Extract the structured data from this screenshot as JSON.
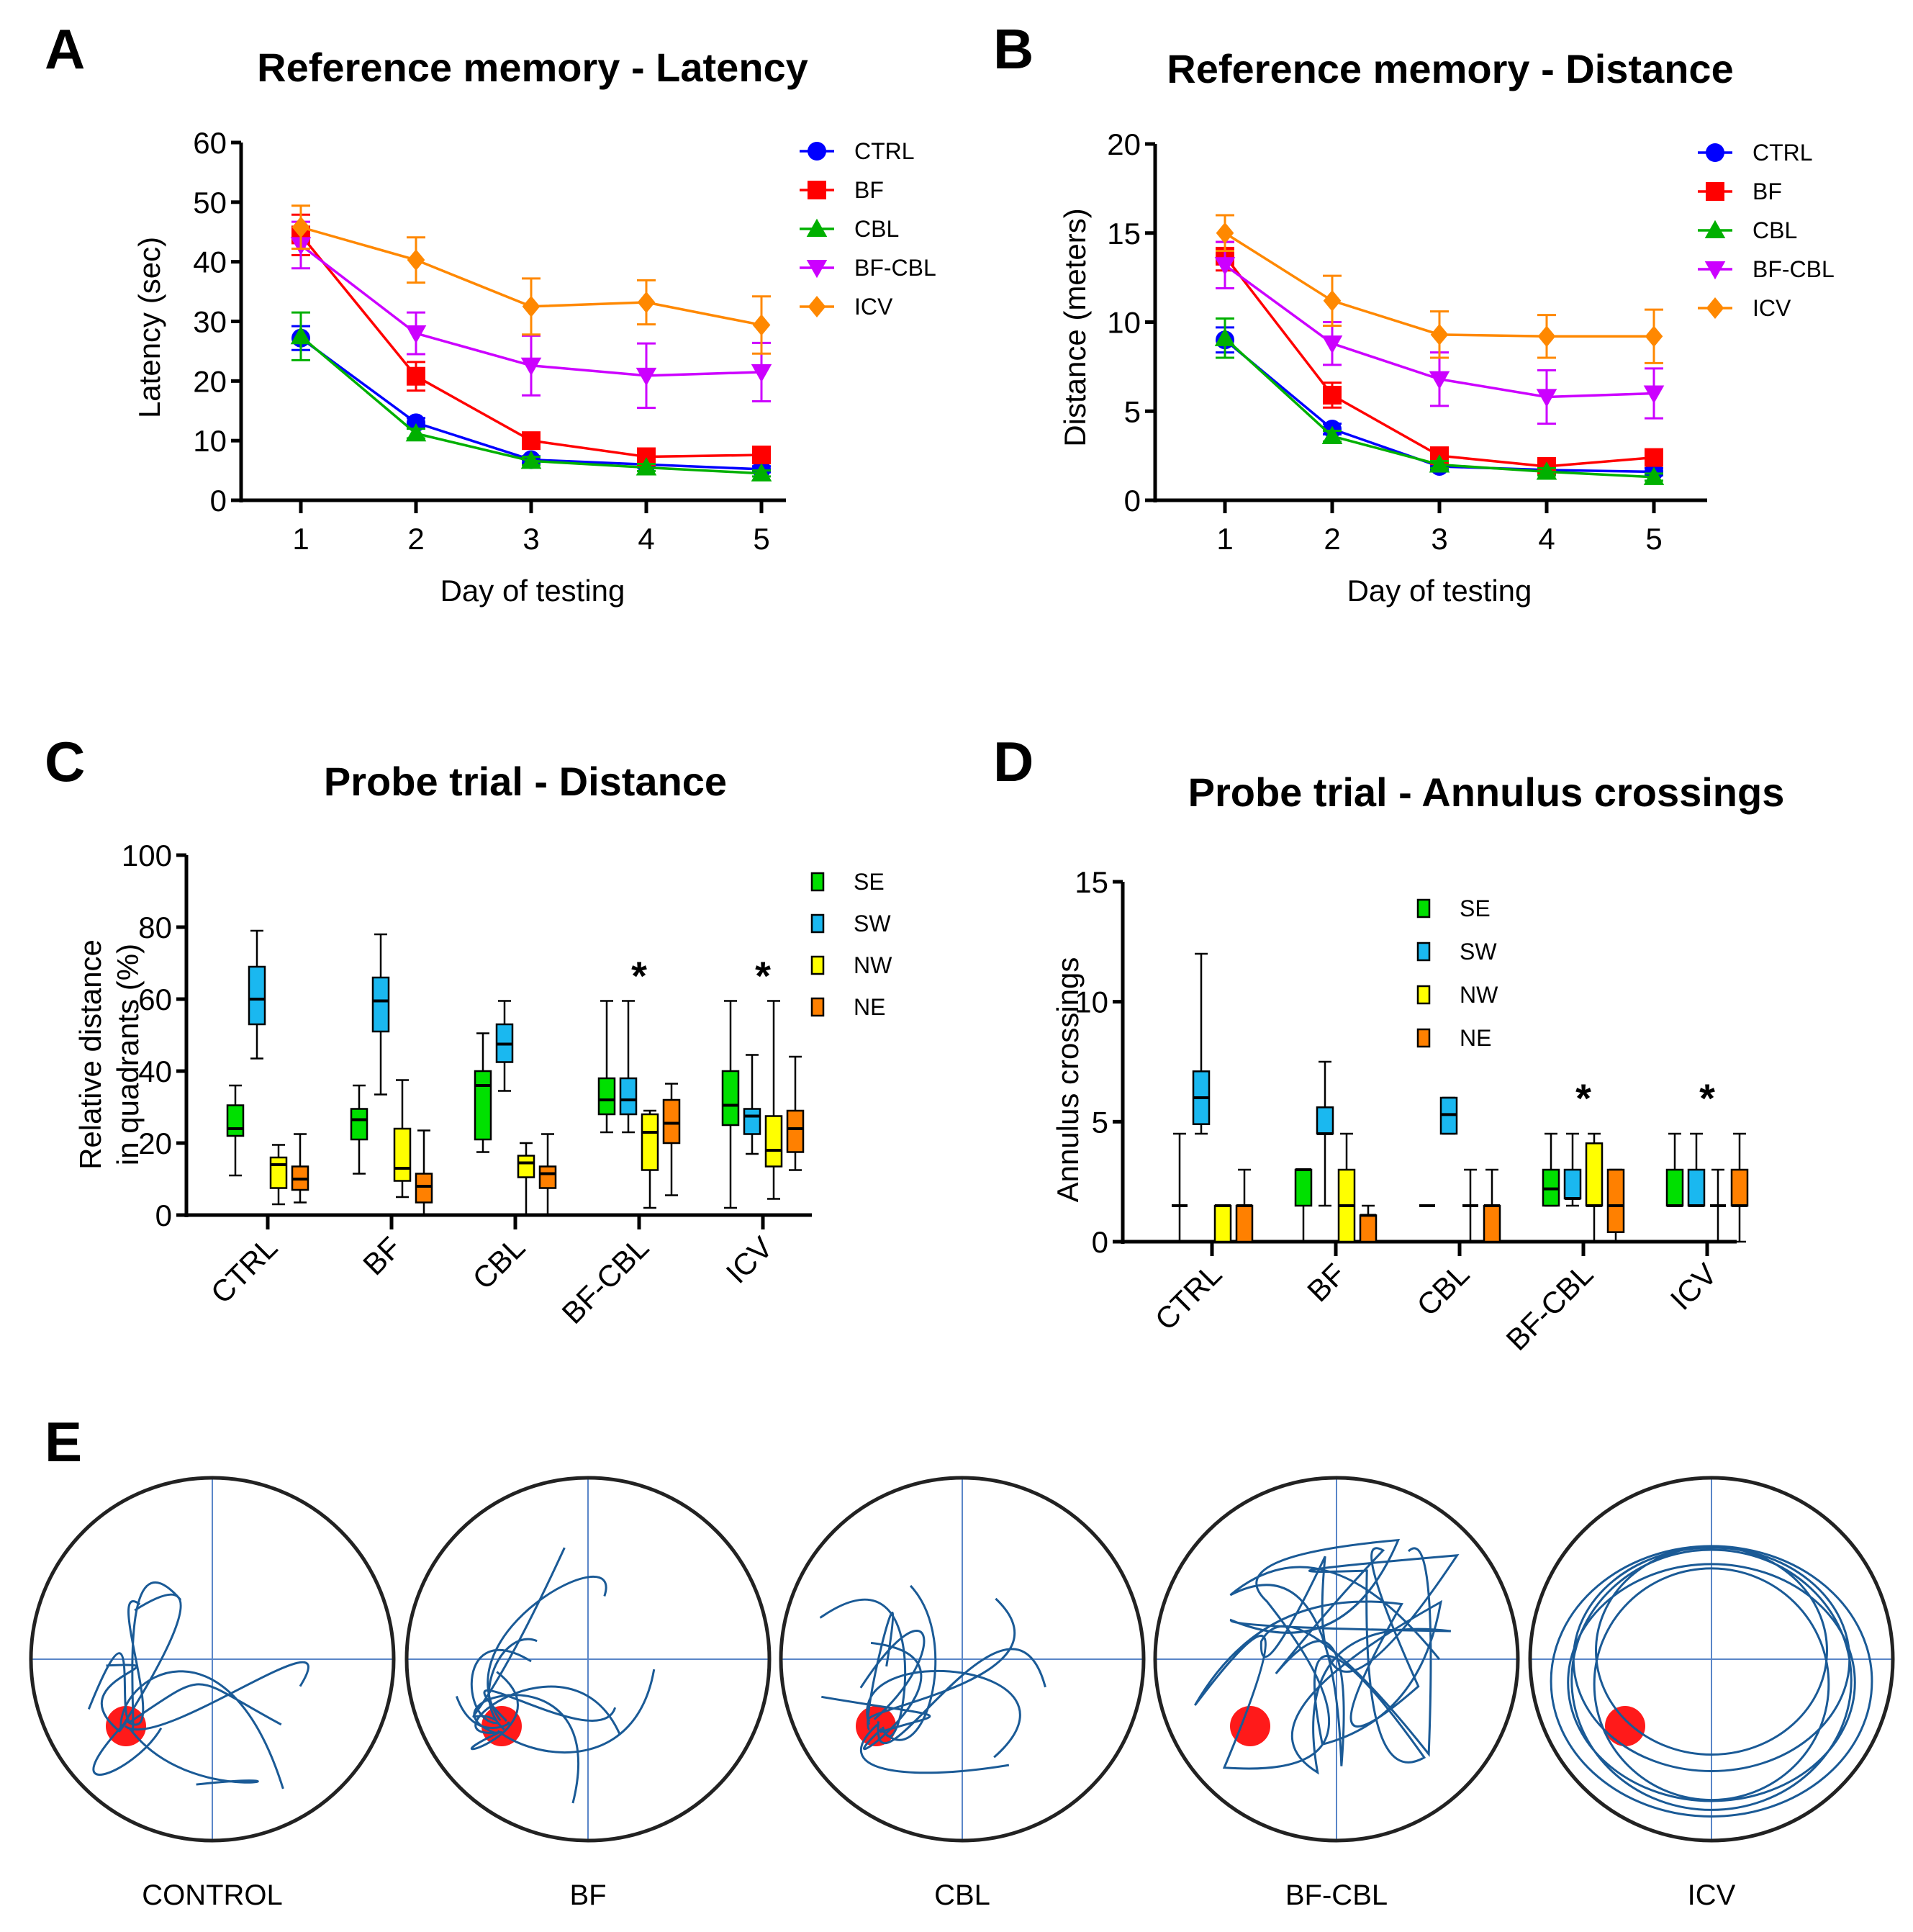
{
  "panels": {
    "A": "A",
    "B": "B",
    "C": "C",
    "D": "D",
    "E": "E"
  },
  "chart_data": [
    {
      "id": "A",
      "type": "line",
      "title": "Reference memory - Latency",
      "xlabel": "Day of testing",
      "ylabel": "Latency (sec)",
      "x": [
        1,
        2,
        3,
        4,
        5
      ],
      "ylim": [
        0,
        60
      ],
      "yticks": [
        0,
        10,
        20,
        30,
        40,
        50,
        60
      ],
      "legend_position": "top-right",
      "series": [
        {
          "name": "CTRL",
          "color": "#0000ff",
          "marker": "circle",
          "values": [
            27.2,
            13.0,
            6.8,
            6.0,
            5.2
          ],
          "err": [
            2.0,
            0.8,
            0.6,
            0.5,
            0.5
          ]
        },
        {
          "name": "BF",
          "color": "#ff0000",
          "marker": "square",
          "values": [
            44.5,
            20.8,
            10.0,
            7.3,
            7.6
          ],
          "err": [
            3.4,
            2.4,
            0.8,
            0.7,
            0.8
          ]
        },
        {
          "name": "CBL",
          "color": "#00b000",
          "marker": "triangle-up",
          "values": [
            27.5,
            11.2,
            6.6,
            5.5,
            4.5
          ],
          "err": [
            4.0,
            0.8,
            0.7,
            0.6,
            0.5
          ]
        },
        {
          "name": "BF-CBL",
          "color": "#cc00ff",
          "marker": "triangle-down",
          "values": [
            42.8,
            28.0,
            22.6,
            20.9,
            21.5
          ],
          "err": [
            3.9,
            3.5,
            5.0,
            5.4,
            4.9
          ]
        },
        {
          "name": "ICV",
          "color": "#ff8800",
          "marker": "diamond",
          "values": [
            45.8,
            40.3,
            32.5,
            33.2,
            29.4
          ],
          "err": [
            3.6,
            3.8,
            4.7,
            3.7,
            4.8
          ]
        }
      ]
    },
    {
      "id": "B",
      "type": "line",
      "title": "Reference memory - Distance",
      "xlabel": "Day of testing",
      "ylabel": "Distance (meters)",
      "x": [
        1,
        2,
        3,
        4,
        5
      ],
      "ylim": [
        0,
        20
      ],
      "yticks": [
        0,
        5,
        10,
        15,
        20
      ],
      "legend_position": "top-right",
      "series": [
        {
          "name": "CTRL",
          "color": "#0000ff",
          "marker": "circle",
          "values": [
            9.0,
            4.0,
            1.9,
            1.7,
            1.6
          ],
          "err": [
            0.7,
            0.3,
            0.2,
            0.2,
            0.2
          ]
        },
        {
          "name": "BF",
          "color": "#ff0000",
          "marker": "square",
          "values": [
            13.7,
            5.9,
            2.5,
            1.9,
            2.4
          ],
          "err": [
            0.8,
            0.7,
            0.2,
            0.2,
            0.3
          ]
        },
        {
          "name": "CBL",
          "color": "#00b000",
          "marker": "triangle-up",
          "values": [
            9.1,
            3.6,
            2.0,
            1.6,
            1.3
          ],
          "err": [
            1.1,
            0.3,
            0.2,
            0.2,
            0.2
          ]
        },
        {
          "name": "BF-CBL",
          "color": "#cc00ff",
          "marker": "triangle-down",
          "values": [
            13.2,
            8.8,
            6.8,
            5.8,
            6.0
          ],
          "err": [
            1.3,
            1.2,
            1.5,
            1.5,
            1.4
          ]
        },
        {
          "name": "ICV",
          "color": "#ff8800",
          "marker": "diamond",
          "values": [
            15.0,
            11.2,
            9.3,
            9.2,
            9.2
          ],
          "err": [
            1.0,
            1.4,
            1.3,
            1.2,
            1.5
          ]
        }
      ]
    },
    {
      "id": "C",
      "type": "box",
      "title": "Probe trial - Distance",
      "xlabel": "",
      "ylabel": "Relative distance in quadrants (%)",
      "ylabel_lines": [
        "Relative distance",
        "in quadrants (%)"
      ],
      "categories": [
        "CTRL",
        "BF",
        "CBL",
        "BF-CBL",
        "ICV"
      ],
      "ylim": [
        0,
        100
      ],
      "yticks": [
        0,
        20,
        40,
        60,
        80,
        100
      ],
      "legend_position": "top-right",
      "significance": [
        "",
        "",
        "",
        "*",
        "*"
      ],
      "series": [
        {
          "name": "SE",
          "color": "#00e000",
          "boxes": [
            {
              "min": 11,
              "q1": 22,
              "median": 24,
              "q3": 30.5,
              "max": 36
            },
            {
              "min": 11.5,
              "q1": 21,
              "median": 26.5,
              "q3": 29.5,
              "max": 36
            },
            {
              "min": 17.5,
              "q1": 21,
              "median": 36,
              "q3": 40,
              "max": 50.5
            },
            {
              "min": 23,
              "q1": 28,
              "median": 32,
              "q3": 38,
              "max": 59.5
            },
            {
              "min": 2,
              "q1": 25,
              "median": 30.5,
              "q3": 40,
              "max": 59.5
            }
          ]
        },
        {
          "name": "SW",
          "color": "#1ab8f0",
          "boxes": [
            {
              "min": 43.5,
              "q1": 53,
              "median": 60,
              "q3": 69,
              "max": 79
            },
            {
              "min": 33.5,
              "q1": 51,
              "median": 59.5,
              "q3": 66,
              "max": 78
            },
            {
              "min": 34.5,
              "q1": 42.5,
              "median": 47.5,
              "q3": 53,
              "max": 59.5
            },
            {
              "min": 23,
              "q1": 28,
              "median": 32,
              "q3": 38,
              "max": 59.5
            },
            {
              "min": 17,
              "q1": 22.5,
              "median": 27.5,
              "q3": 29.5,
              "max": 44.5
            }
          ]
        },
        {
          "name": "NW",
          "color": "#ffff00",
          "boxes": [
            {
              "min": 3,
              "q1": 7.5,
              "median": 14,
              "q3": 16,
              "max": 19.5
            },
            {
              "min": 5,
              "q1": 9.5,
              "median": 13,
              "q3": 24,
              "max": 37.5
            },
            {
              "min": 0,
              "q1": 10.5,
              "median": 14.5,
              "q3": 16.5,
              "max": 20
            },
            {
              "min": 2,
              "q1": 12.5,
              "median": 23,
              "q3": 28,
              "max": 29
            },
            {
              "min": 4.5,
              "q1": 13.5,
              "median": 18,
              "q3": 27.5,
              "max": 59.5
            }
          ]
        },
        {
          "name": "NE",
          "color": "#ff8000",
          "boxes": [
            {
              "min": 3.5,
              "q1": 7,
              "median": 10,
              "q3": 13.5,
              "max": 22.5
            },
            {
              "min": 0,
              "q1": 3.5,
              "median": 8,
              "q3": 11.5,
              "max": 23.5
            },
            {
              "min": 0,
              "q1": 7.5,
              "median": 11.5,
              "q3": 13.5,
              "max": 22.5
            },
            {
              "min": 5.5,
              "q1": 20,
              "median": 25.5,
              "q3": 32,
              "max": 36.5
            },
            {
              "min": 12.5,
              "q1": 17.5,
              "median": 24,
              "q3": 29,
              "max": 44
            }
          ]
        }
      ]
    },
    {
      "id": "D",
      "type": "box",
      "title": "Probe trial - Annulus crossings",
      "xlabel": "",
      "ylabel": "Annulus crossings",
      "categories": [
        "CTRL",
        "BF",
        "CBL",
        "BF-CBL",
        "ICV"
      ],
      "ylim": [
        0,
        15
      ],
      "yticks": [
        0,
        5,
        10,
        15
      ],
      "legend_position": "top-right",
      "significance": [
        "",
        "",
        "",
        "*",
        "*"
      ],
      "series": [
        {
          "name": "SE",
          "color": "#00e000",
          "boxes": [
            {
              "min": 0,
              "q1": 1.5,
              "median": 1.5,
              "q3": 1.5,
              "max": 4.5
            },
            {
              "min": 0,
              "q1": 1.5,
              "median": 3,
              "q3": 3,
              "max": 3
            },
            {
              "min": 1.5,
              "q1": 1.5,
              "median": 1.5,
              "q3": 1.5,
              "max": 1.5
            },
            {
              "min": 1.5,
              "q1": 1.5,
              "median": 2.2,
              "q3": 3,
              "max": 4.5
            },
            {
              "min": 1.5,
              "q1": 1.5,
              "median": 1.5,
              "q3": 3,
              "max": 4.5
            }
          ]
        },
        {
          "name": "SW",
          "color": "#1ab8f0",
          "boxes": [
            {
              "min": 4.5,
              "q1": 4.9,
              "median": 6,
              "q3": 7.1,
              "max": 12
            },
            {
              "min": 1.5,
              "q1": 4.5,
              "median": 4.5,
              "q3": 5.6,
              "max": 7.5
            },
            {
              "min": 4.5,
              "q1": 4.5,
              "median": 5.3,
              "q3": 6,
              "max": 6
            },
            {
              "min": 1.5,
              "q1": 1.8,
              "median": 1.8,
              "q3": 3,
              "max": 4.5
            },
            {
              "min": 1.5,
              "q1": 1.5,
              "median": 1.5,
              "q3": 3,
              "max": 4.5
            }
          ]
        },
        {
          "name": "NW",
          "color": "#ffff00",
          "boxes": [
            {
              "min": 0,
              "q1": 0,
              "median": 1.5,
              "q3": 1.5,
              "max": 1.5
            },
            {
              "min": 0,
              "q1": 0,
              "median": 1.5,
              "q3": 3,
              "max": 4.5
            },
            {
              "min": 0,
              "q1": 1.5,
              "median": 1.5,
              "q3": 1.5,
              "max": 3
            },
            {
              "min": 0,
              "q1": 1.5,
              "median": 1.5,
              "q3": 4.1,
              "max": 4.5
            },
            {
              "min": 0,
              "q1": 1.5,
              "median": 1.5,
              "q3": 1.5,
              "max": 3
            }
          ]
        },
        {
          "name": "NE",
          "color": "#ff8000",
          "boxes": [
            {
              "min": 0,
              "q1": 0,
              "median": 1.5,
              "q3": 1.5,
              "max": 3
            },
            {
              "min": 0,
              "q1": 0,
              "median": 1.1,
              "q3": 1.1,
              "max": 1.5
            },
            {
              "min": 0,
              "q1": 0,
              "median": 1.5,
              "q3": 1.5,
              "max": 3
            },
            {
              "min": 0,
              "q1": 0.4,
              "median": 1.5,
              "q3": 3,
              "max": 3
            },
            {
              "min": 0,
              "q1": 1.5,
              "median": 1.5,
              "q3": 3,
              "max": 4.5
            }
          ]
        }
      ]
    },
    {
      "id": "E",
      "type": "trajectory",
      "title": "",
      "groups": [
        "CONTROL",
        "BF",
        "CBL",
        "BF-CBL",
        "ICV"
      ],
      "platform_quadrant": "SW",
      "path_color": "#1a5a96",
      "platform_color": "#ff1a1a",
      "pattern": [
        "focused",
        "focused",
        "focused",
        "diffuse",
        "thigmotaxis"
      ]
    }
  ]
}
